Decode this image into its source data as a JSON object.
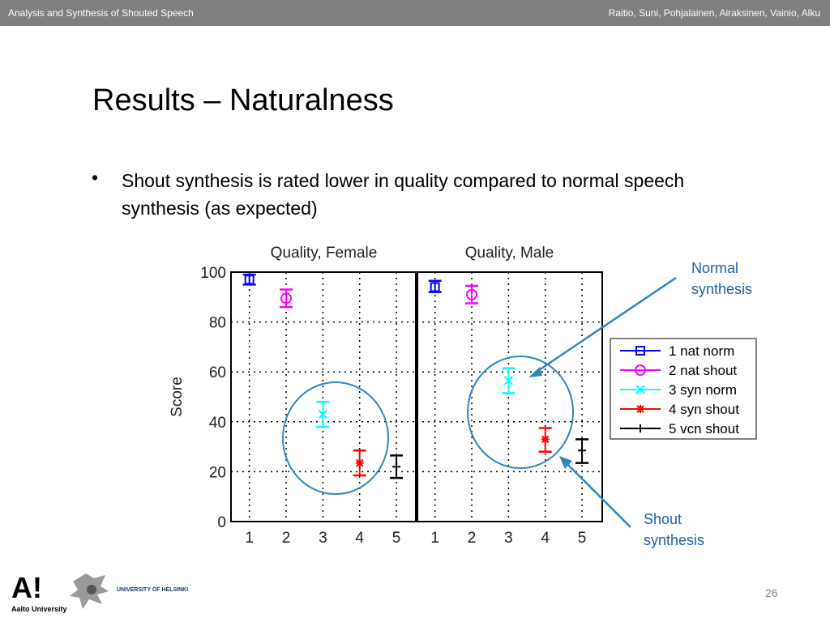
{
  "header": {
    "left": "Analysis and Synthesis of Shouted Speech",
    "right": "Raitio, Suni, Pohjalainen, Airaksinen, Vainio, Alku"
  },
  "slide": {
    "title": "Results – Naturalness",
    "bullet": "Shout synthesis is rated lower in quality compared to normal speech synthesis (as expected)",
    "annotation_normal_line1": "Normal",
    "annotation_normal_line2": "synthesis",
    "annotation_shout_line1": "Shout",
    "annotation_shout_line2": "synthesis",
    "page_number": "26",
    "logo_aalto": "A!",
    "logo_aalto_text": "Aalto University",
    "logo_helsinki_text": "UNIVERSITY OF HELSINKI"
  },
  "colors": {
    "nat_norm": "#0000ff",
    "nat_shout": "#ff00ff",
    "syn_norm": "#00ffff",
    "syn_shout": "#ff0000",
    "vcn_shout": "#000000",
    "annotation": "#2e86c1",
    "header_bg": "#7f7f7f"
  },
  "chart_data": [
    {
      "type": "scatter",
      "title": "Quality, Female",
      "ylabel": "Score",
      "ylim": [
        0,
        100
      ],
      "yticks": [
        0,
        20,
        40,
        60,
        80,
        100
      ],
      "xticks": [
        "1",
        "2",
        "3",
        "4",
        "5"
      ],
      "grid": true,
      "series": [
        {
          "name": "1 nat norm",
          "x": 1,
          "y": 97,
          "ci": [
            95,
            99
          ],
          "marker": "square",
          "color": "#0000ff"
        },
        {
          "name": "2 nat shout",
          "x": 2,
          "y": 89.5,
          "ci": [
            86,
            93
          ],
          "marker": "circle",
          "color": "#ff00ff"
        },
        {
          "name": "3 syn norm",
          "x": 3,
          "y": 43,
          "ci": [
            38,
            48
          ],
          "marker": "x",
          "color": "#00ffff"
        },
        {
          "name": "4 syn shout",
          "x": 4,
          "y": 23.5,
          "ci": [
            18.5,
            28.5
          ],
          "marker": "star",
          "color": "#ff0000"
        },
        {
          "name": "5 vcn shout",
          "x": 5,
          "y": 22,
          "ci": [
            17.5,
            26.5
          ],
          "marker": "plus",
          "color": "#000000"
        }
      ]
    },
    {
      "type": "scatter",
      "title": "Quality, Male",
      "ylim": [
        0,
        100
      ],
      "xticks": [
        "1",
        "2",
        "3",
        "4",
        "5"
      ],
      "grid": true,
      "legend": "right",
      "series": [
        {
          "name": "1 nat norm",
          "x": 1,
          "y": 94,
          "ci": [
            92,
            96.5
          ],
          "marker": "square",
          "color": "#0000ff"
        },
        {
          "name": "2 nat shout",
          "x": 2,
          "y": 91,
          "ci": [
            87.5,
            94.5
          ],
          "marker": "circle",
          "color": "#ff00ff"
        },
        {
          "name": "3 syn norm",
          "x": 3,
          "y": 56.5,
          "ci": [
            51.5,
            61.5
          ],
          "marker": "x",
          "color": "#00ffff"
        },
        {
          "name": "4 syn shout",
          "x": 4,
          "y": 33,
          "ci": [
            28,
            37.5
          ],
          "marker": "star",
          "color": "#ff0000"
        },
        {
          "name": "5 vcn shout",
          "x": 5,
          "y": 28.5,
          "ci": [
            23.5,
            33
          ],
          "marker": "plus",
          "color": "#000000"
        }
      ]
    }
  ]
}
